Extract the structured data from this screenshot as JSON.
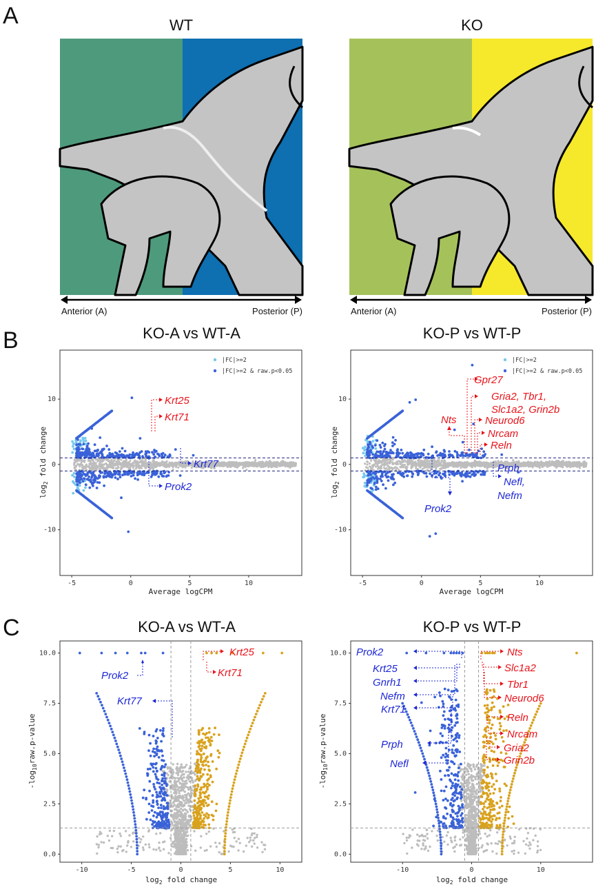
{
  "panel_letters": [
    "A",
    "B",
    "C"
  ],
  "panel_a": {
    "wt": {
      "title": "WT",
      "anterior_color": "#4e9a7c",
      "posterior_color": "#0e6fb1"
    },
    "ko": {
      "title": "KO",
      "anterior_color": "#a5c25a",
      "posterior_color": "#f6e82a"
    },
    "anterior_label": "Anterior (A)",
    "posterior_label": "Posterior (P)"
  },
  "colors": {
    "up": "#e8141b",
    "down": "#1d27d6",
    "blue_pts": "#3a62d8",
    "light_blue": "#76c8ee",
    "orange": "#d9a21d",
    "gray": "#bdbdbd"
  },
  "chart_data": [
    {
      "id": "ma-a",
      "type": "scatter",
      "title": "KO-A vs WT-A",
      "xlabel": "Average logCPM",
      "ylabel": "log2 fold change",
      "xlim": [
        -6,
        14.5
      ],
      "ylim": [
        -17,
        17.5
      ],
      "xticks": [
        -5,
        0,
        5,
        10
      ],
      "yticks": [
        -10,
        0,
        10
      ],
      "hlines": [
        1,
        -1
      ],
      "legend": [
        "|FC|>=2",
        "|FC|>=2 & raw.p<0.05"
      ],
      "gene_labels": [
        {
          "name": "Krt25",
          "dir": "up"
        },
        {
          "name": "Krt71",
          "dir": "up"
        },
        {
          "name": "Krt77",
          "dir": "down"
        },
        {
          "name": "Prok2",
          "dir": "down"
        }
      ]
    },
    {
      "id": "ma-p",
      "type": "scatter",
      "title": "KO-P vs WT-P",
      "xlabel": "Average logCPM",
      "ylabel": "log2 fold change",
      "xlim": [
        -6,
        14.5
      ],
      "ylim": [
        -17,
        17.5
      ],
      "xticks": [
        -5,
        0,
        5,
        10
      ],
      "yticks": [
        -10,
        0,
        10
      ],
      "hlines": [
        1,
        -1
      ],
      "legend": [
        "|FC|>=2",
        "|FC|>=2 & raw.p<0.05"
      ],
      "gene_labels": [
        {
          "name": "Gpr27",
          "dir": "up"
        },
        {
          "name": "Gria2, Tbr1,",
          "dir": "up"
        },
        {
          "name": "Slc1a2, Grin2b",
          "dir": "up"
        },
        {
          "name": "Nts",
          "dir": "up"
        },
        {
          "name": "Neurod6",
          "dir": "up"
        },
        {
          "name": "Nrcam",
          "dir": "up"
        },
        {
          "name": "Reln",
          "dir": "up"
        },
        {
          "name": "Prph,",
          "dir": "down"
        },
        {
          "name": "Nefl,",
          "dir": "down"
        },
        {
          "name": "Nefm",
          "dir": "down"
        },
        {
          "name": "Prok2",
          "dir": "down"
        }
      ]
    },
    {
      "id": "vol-a",
      "type": "scatter",
      "title": "KO-A vs WT-A",
      "xlabel": "log2 fold change",
      "ylabel": "-log10 raw.p-value",
      "xlim": [
        -12.2,
        12.2
      ],
      "ylim": [
        -0.4,
        10.6
      ],
      "xticks": [
        -10,
        -5,
        0,
        5,
        10
      ],
      "yticks": [
        0.0,
        2.5,
        5.0,
        7.5,
        10.0
      ],
      "vlines": [
        -1,
        1
      ],
      "hline": 1.3,
      "gene_labels": [
        {
          "name": "Krt25",
          "dir": "up"
        },
        {
          "name": "Krt71",
          "dir": "up"
        },
        {
          "name": "Prok2",
          "dir": "down"
        },
        {
          "name": "Krt77",
          "dir": "down"
        }
      ]
    },
    {
      "id": "vol-p",
      "type": "scatter",
      "title": "KO-P vs WT-P",
      "xlabel": "log2 fold change",
      "ylabel": "-log10 raw.p-value",
      "xlim": [
        -17.5,
        17.5
      ],
      "ylim": [
        -0.4,
        10.6
      ],
      "xticks": [
        -10,
        0,
        10
      ],
      "yticks": [
        0.0,
        2.5,
        5.0,
        7.5,
        10.0
      ],
      "vlines": [
        -1,
        1
      ],
      "hline": 1.3,
      "gene_labels": [
        {
          "name": "Prok2",
          "dir": "down"
        },
        {
          "name": "Krt25",
          "dir": "down"
        },
        {
          "name": "Gnrh1",
          "dir": "down"
        },
        {
          "name": "Nefm",
          "dir": "down"
        },
        {
          "name": "Krt71",
          "dir": "down"
        },
        {
          "name": "Prph",
          "dir": "down"
        },
        {
          "name": "Nefl",
          "dir": "down"
        },
        {
          "name": "Nts",
          "dir": "up"
        },
        {
          "name": "Slc1a2",
          "dir": "up"
        },
        {
          "name": "Tbr1",
          "dir": "up"
        },
        {
          "name": "Neurod6",
          "dir": "up"
        },
        {
          "name": "Reln",
          "dir": "up"
        },
        {
          "name": "Nrcam",
          "dir": "up"
        },
        {
          "name": "Gria2",
          "dir": "up"
        },
        {
          "name": "Grin2b",
          "dir": "up"
        }
      ]
    }
  ]
}
